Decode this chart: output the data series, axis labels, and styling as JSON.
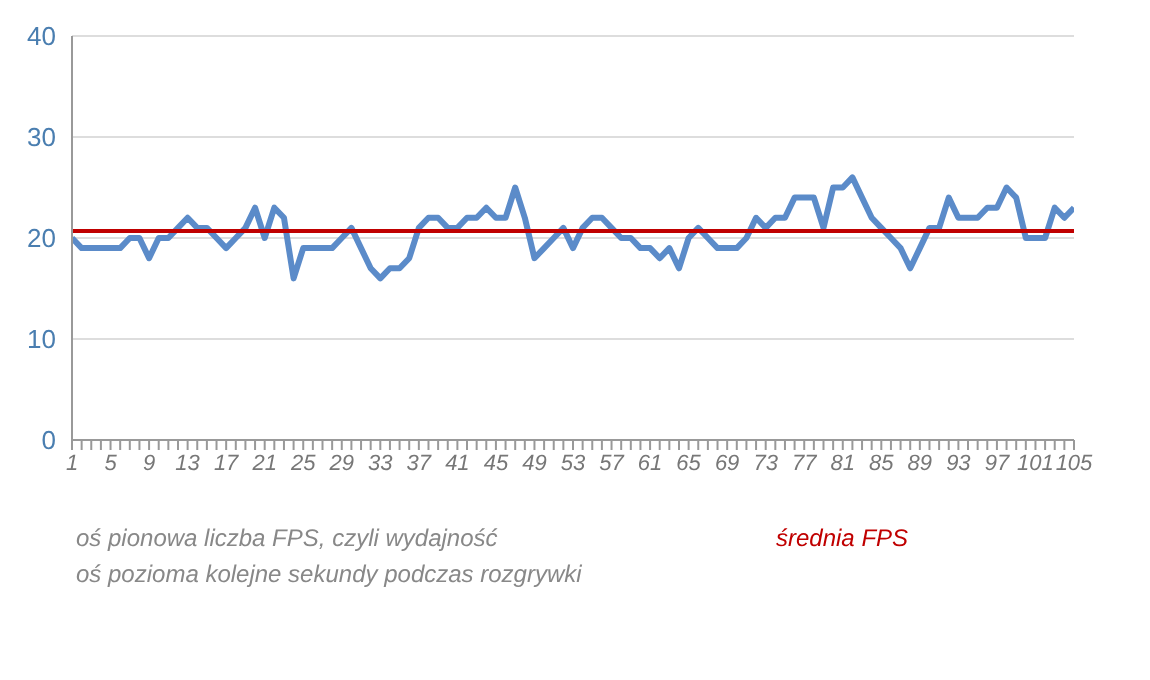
{
  "chart_data": {
    "type": "line",
    "categories": [
      "1",
      null,
      null,
      null,
      "5",
      null,
      null,
      null,
      "9",
      null,
      null,
      null,
      "13",
      null,
      null,
      null,
      "17",
      null,
      null,
      null,
      "21",
      null,
      null,
      null,
      "25",
      null,
      null,
      null,
      "29",
      null,
      null,
      null,
      "33",
      null,
      null,
      null,
      "37",
      null,
      null,
      null,
      "41",
      null,
      null,
      null,
      "45",
      null,
      null,
      null,
      "49",
      null,
      null,
      null,
      "53",
      null,
      null,
      null,
      "57",
      null,
      null,
      null,
      "61",
      null,
      null,
      null,
      "65",
      null,
      null,
      null,
      "69",
      null,
      null,
      null,
      "73",
      null,
      null,
      null,
      "77",
      null,
      null,
      null,
      "81",
      null,
      null,
      null,
      "85",
      null,
      null,
      null,
      "89",
      null,
      null,
      null,
      "93",
      null,
      null,
      null,
      "97",
      null,
      null,
      null,
      "101",
      null,
      null,
      null,
      "105"
    ],
    "series": [
      {
        "color": "#5b8bc9",
        "values": [
          20,
          19,
          19,
          19,
          19,
          19,
          20,
          20,
          18,
          20,
          20,
          21,
          22,
          21,
          21,
          20,
          19,
          20,
          21,
          23,
          20,
          23,
          22,
          16,
          19,
          19,
          19,
          19,
          20,
          21,
          19,
          17,
          16,
          17,
          17,
          18,
          21,
          22,
          22,
          21,
          21,
          22,
          22,
          23,
          22,
          22,
          25,
          22,
          18,
          19,
          20,
          21,
          19,
          21,
          22,
          22,
          21,
          20,
          20,
          19,
          19,
          18,
          19,
          17,
          20,
          21,
          20,
          19,
          19,
          19,
          20,
          22,
          21,
          22,
          22,
          24,
          24,
          24,
          21,
          25,
          25,
          26,
          24,
          22,
          21,
          20,
          19,
          17,
          19,
          21,
          21,
          24,
          22,
          22,
          22,
          23,
          23,
          25,
          24,
          20,
          20,
          20,
          23,
          22,
          23
        ]
      }
    ],
    "ylim": [
      0,
      40
    ],
    "yticks": [
      0,
      10,
      20,
      30,
      40
    ],
    "grid": "y",
    "marker": "none",
    "ref_lines": [
      {
        "axis": "y",
        "value": 20.7,
        "label": "średnia FPS",
        "color": "#c00000"
      }
    ],
    "annotations": [
      "oś pionowa liczba FPS, czyli wydajność",
      "oś pozioma kolejne sekundy podczas rozgrywki"
    ]
  }
}
